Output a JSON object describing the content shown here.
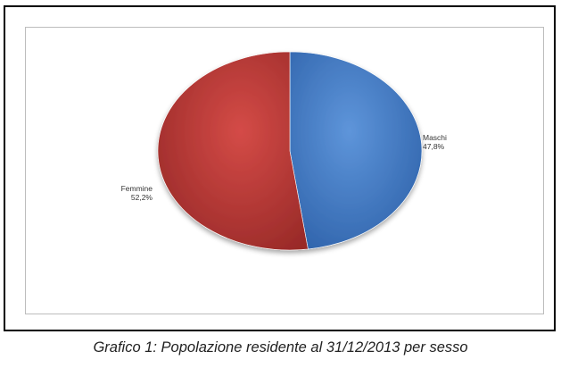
{
  "caption": "Grafico 1: Popolazione residente al 31/12/2013 per sesso",
  "chart_data": {
    "type": "pie",
    "title": "",
    "slices": [
      {
        "label": "Maschi",
        "value": 47.8,
        "value_label": "47,8%",
        "color": "#3f7ccb"
      },
      {
        "label": "Femmine",
        "value": 52.2,
        "value_label": "52,2%",
        "color": "#c33a37"
      }
    ],
    "legend": "none"
  }
}
